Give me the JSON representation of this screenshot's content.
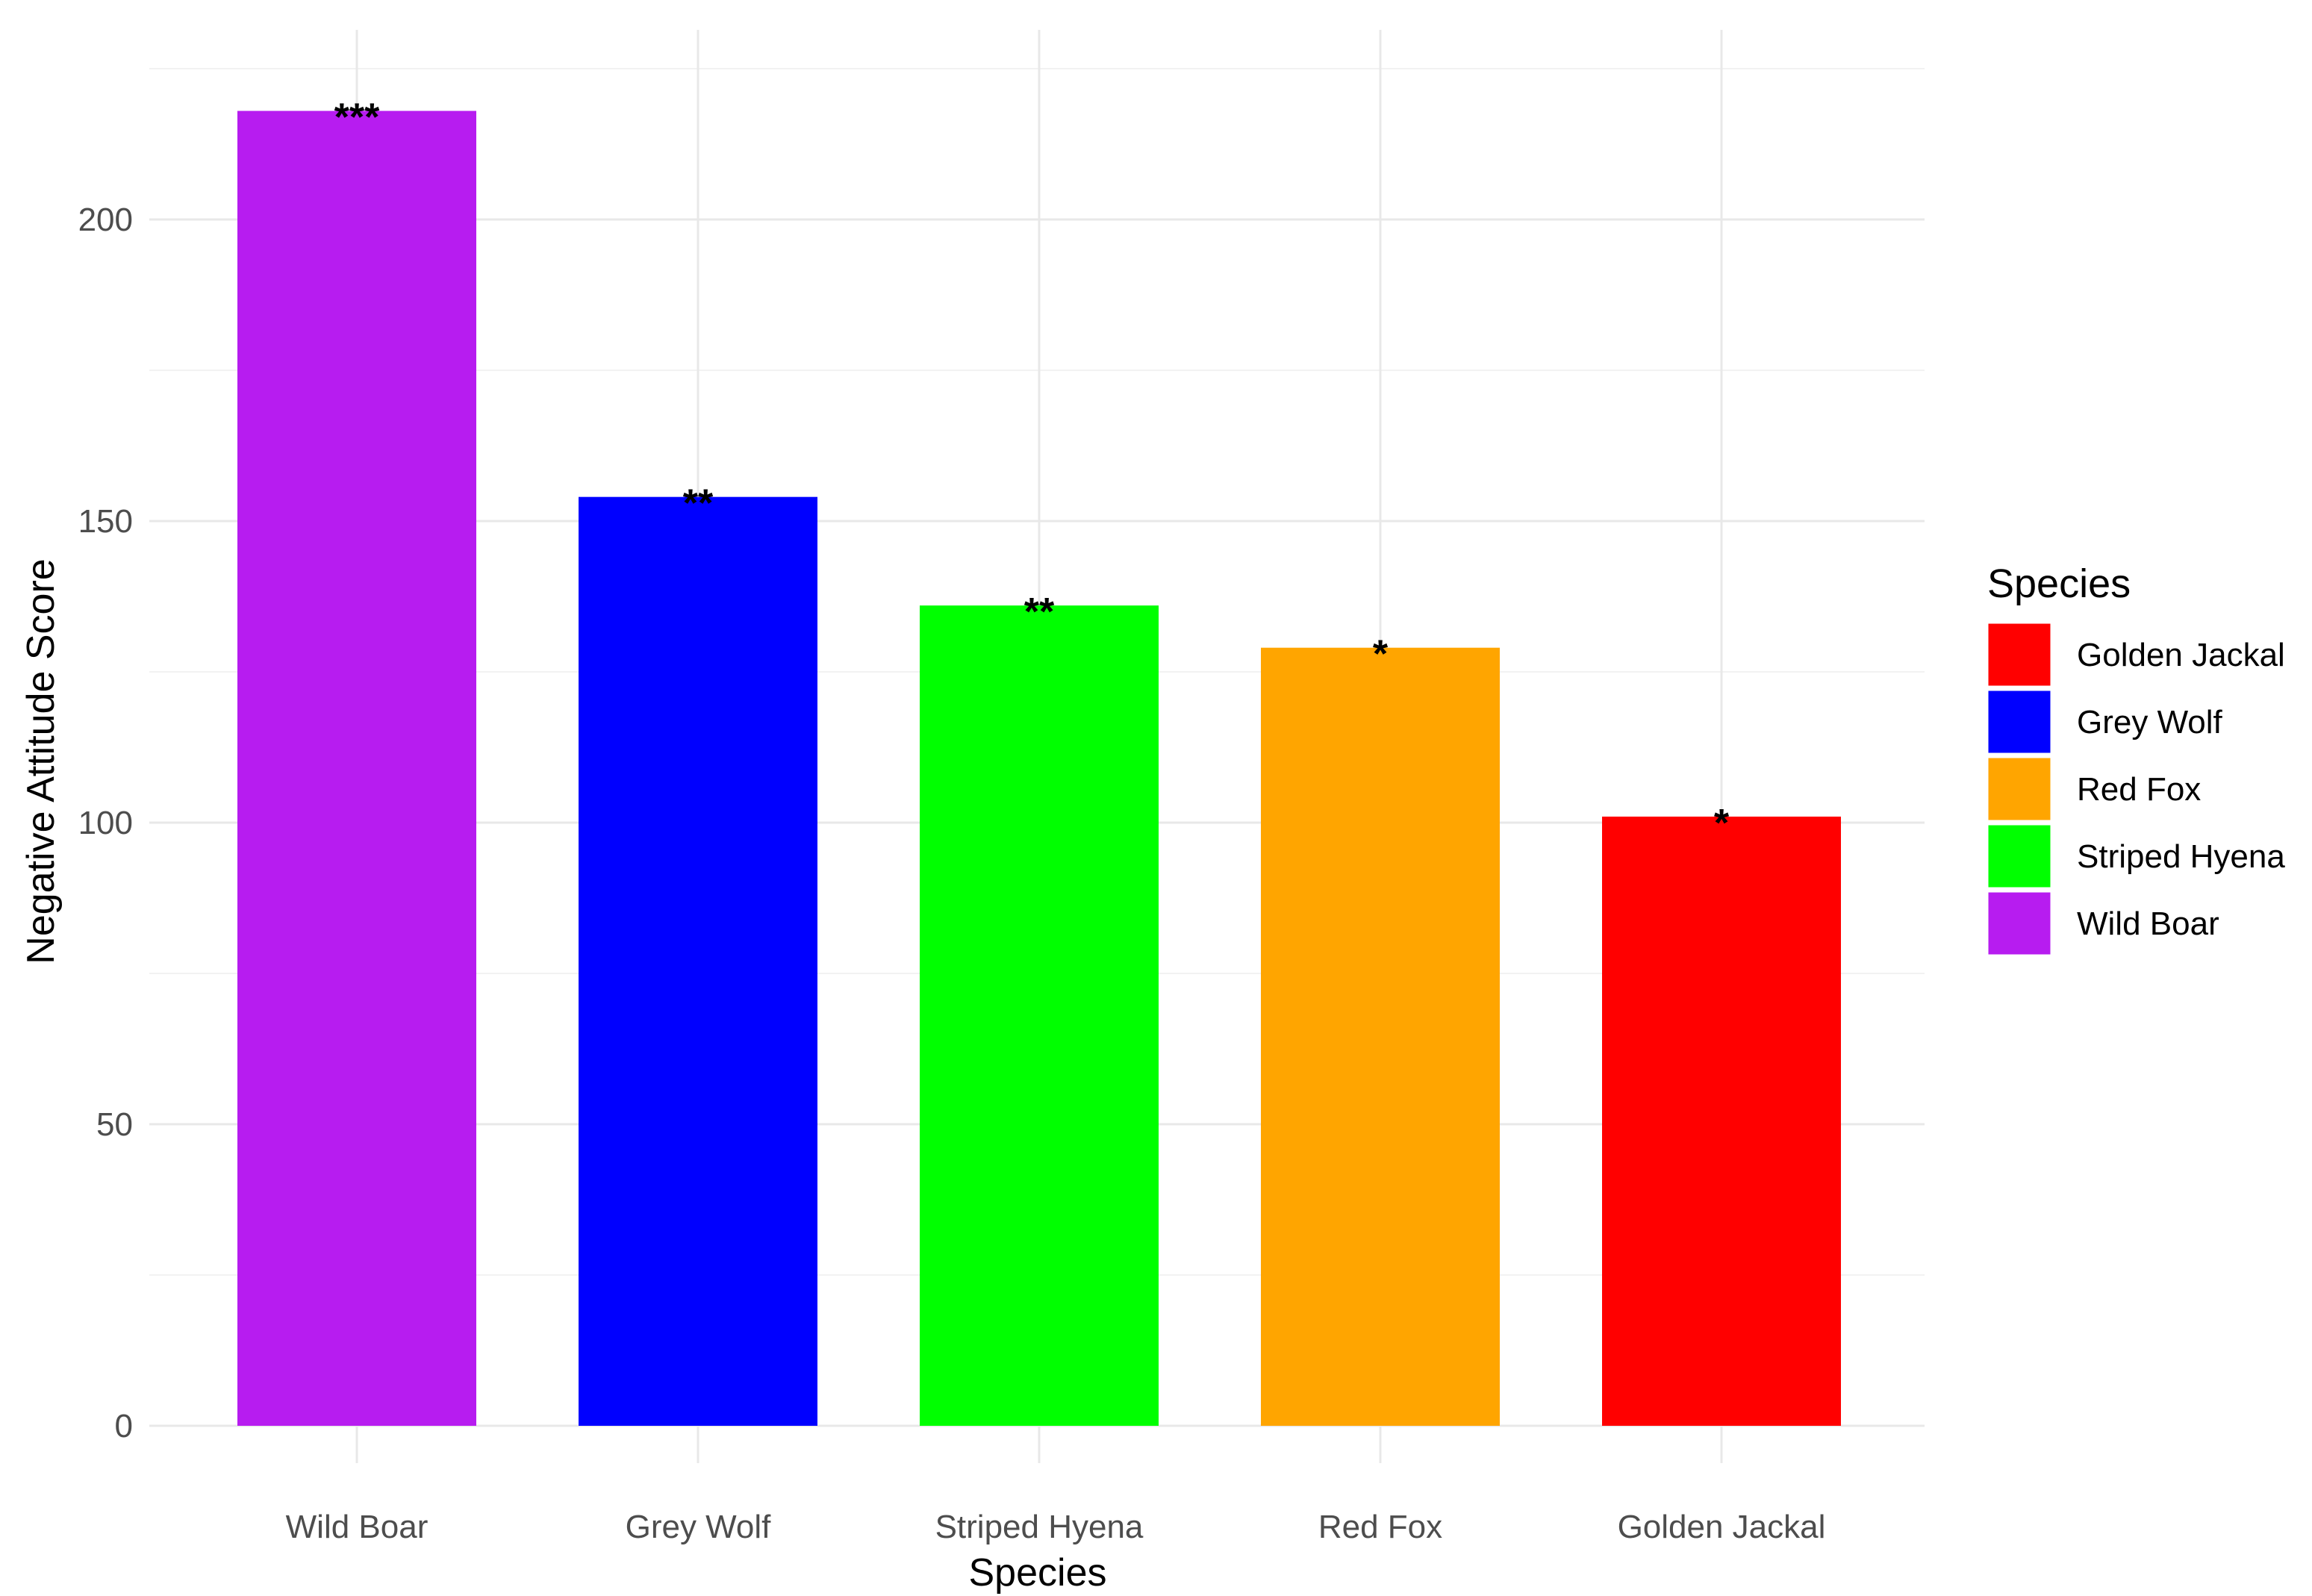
{
  "chart_data": {
    "type": "bar",
    "title": "",
    "xlabel": "Species",
    "ylabel": "Negative Attitude Score",
    "categories": [
      "Wild Boar",
      "Grey Wolf",
      "Striped Hyena",
      "Red Fox",
      "Golden Jackal"
    ],
    "values": [
      218,
      154,
      136,
      129,
      101
    ],
    "significance": [
      "***",
      "**",
      "**",
      "*",
      "*"
    ],
    "colors": [
      "#b71cf0",
      "#0000ff",
      "#00ff00",
      "#ffa500",
      "#ff0000"
    ],
    "ylim": [
      0,
      230
    ],
    "yticks": [
      0,
      50,
      100,
      150,
      200
    ],
    "grid": true,
    "legend": {
      "title": "Species",
      "position": "right",
      "items": [
        {
          "label": "Golden Jackal",
          "color": "#ff0000"
        },
        {
          "label": "Grey Wolf",
          "color": "#0000ff"
        },
        {
          "label": "Red Fox",
          "color": "#ffa500"
        },
        {
          "label": "Striped Hyena",
          "color": "#00ff00"
        },
        {
          "label": "Wild Boar",
          "color": "#b71cf0"
        }
      ]
    }
  }
}
